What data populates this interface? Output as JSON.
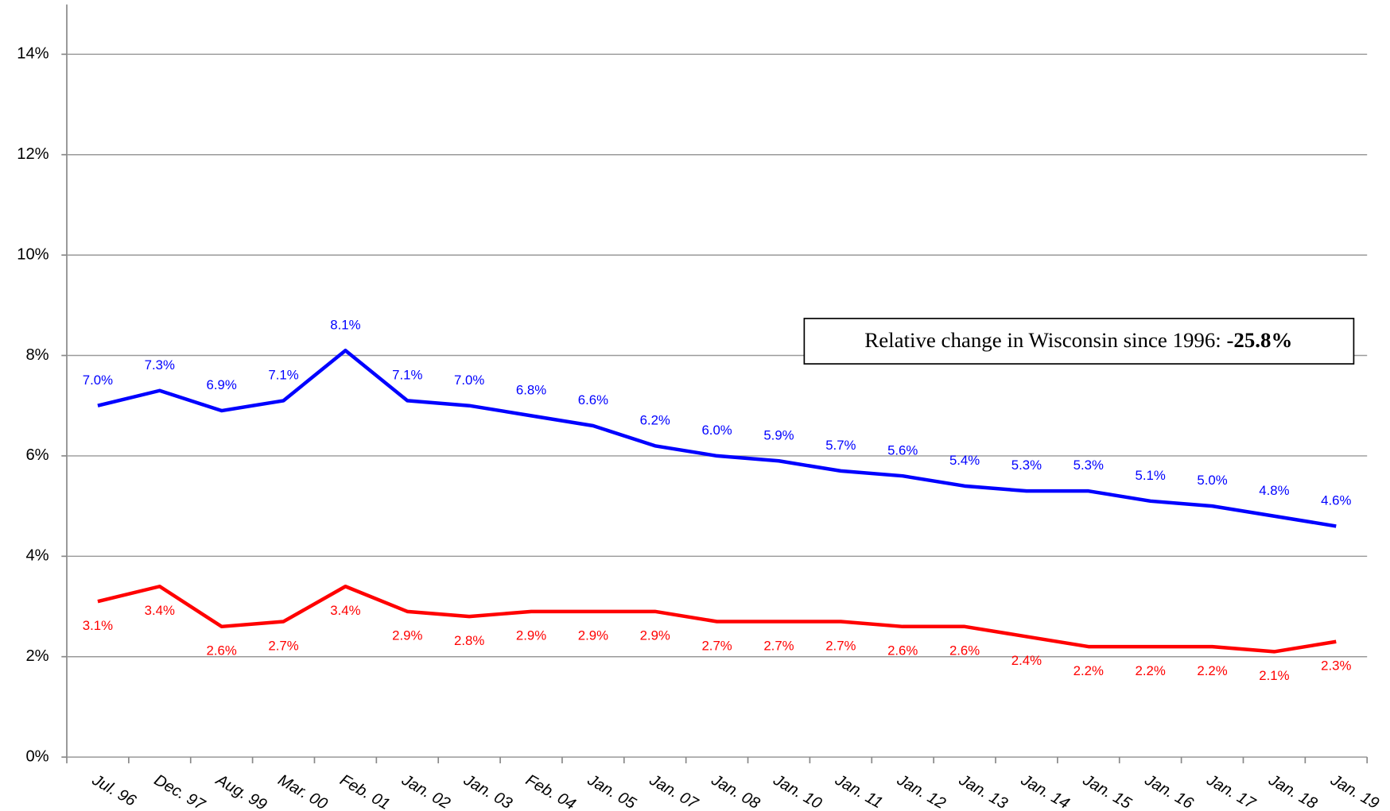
{
  "chart_data": {
    "type": "line",
    "categories": [
      "Jul. 96",
      "Dec. 97",
      "Aug. 99",
      "Mar. 00",
      "Feb. 01",
      "Jan. 02",
      "Jan. 03",
      "Feb. 04",
      "Jan. 05",
      "Jan. 07",
      "Jan. 08",
      "Jan. 10",
      "Jan. 11",
      "Jan. 12",
      "Jan. 13",
      "Jan. 14",
      "Jan. 15",
      "Jan. 16",
      "Jan. 17",
      "Jan. 18",
      "Jan. 19"
    ],
    "series": [
      {
        "color": "#0000ff",
        "values": [
          7.0,
          7.3,
          6.9,
          7.1,
          8.1,
          7.1,
          7.0,
          6.8,
          6.6,
          6.2,
          6.0,
          5.9,
          5.7,
          5.6,
          5.4,
          5.3,
          5.3,
          5.1,
          5.0,
          4.8,
          4.6
        ],
        "value_labels": [
          "7.0%",
          "7.3%",
          "6.9%",
          "7.1%",
          "8.1%",
          "7.1%",
          "7.0%",
          "6.8%",
          "6.6%",
          "6.2%",
          "6.0%",
          "5.9%",
          "5.7%",
          "5.6%",
          "5.4%",
          "5.3%",
          "5.3%",
          "5.1%",
          "5.0%",
          "4.8%",
          "4.6%"
        ]
      },
      {
        "color": "#ff0000",
        "values": [
          3.1,
          3.4,
          2.6,
          2.7,
          3.4,
          2.9,
          2.8,
          2.9,
          2.9,
          2.9,
          2.7,
          2.7,
          2.7,
          2.6,
          2.6,
          2.4,
          2.2,
          2.2,
          2.2,
          2.1,
          2.3
        ],
        "value_labels": [
          "3.1%",
          "3.4%",
          "2.6%",
          "2.7%",
          "3.4%",
          "2.9%",
          "2.8%",
          "2.9%",
          "2.9%",
          "2.9%",
          "2.7%",
          "2.7%",
          "2.7%",
          "2.6%",
          "2.6%",
          "2.4%",
          "2.2%",
          "2.2%",
          "2.2%",
          "2.1%",
          "2.3%"
        ]
      }
    ],
    "ylim": [
      0,
      14
    ],
    "yticks": [
      {
        "value": 0,
        "label": "0%"
      },
      {
        "value": 2,
        "label": "2%"
      },
      {
        "value": 4,
        "label": "4%"
      },
      {
        "value": 6,
        "label": "6%"
      },
      {
        "value": 8,
        "label": "8%"
      },
      {
        "value": 10,
        "label": "10%"
      },
      {
        "value": 12,
        "label": "12%"
      },
      {
        "value": 14,
        "label": "14%"
      }
    ],
    "grid": true,
    "annotation": {
      "text": "Relative change in Wisconsin since 1996: ",
      "value": "-25.8%"
    }
  }
}
